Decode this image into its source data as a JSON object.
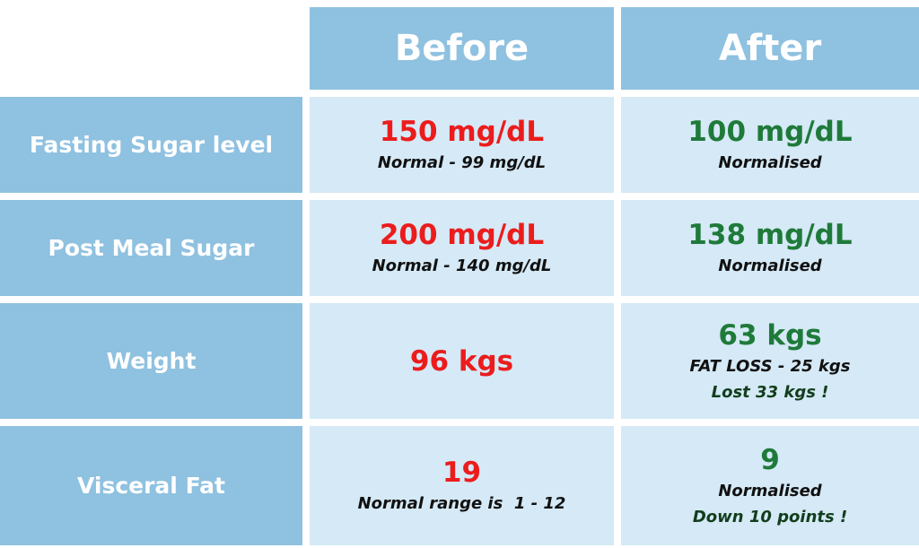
{
  "table": {
    "header": [
      "Before",
      "After"
    ],
    "rows": [
      {
        "label": "Fasting Sugar level",
        "before": {
          "main": "150 mg/dL",
          "notes": [
            "Normal - 99 mg/dL"
          ]
        },
        "after": {
          "main": "100 mg/dL",
          "notes": [
            "Normalised"
          ]
        }
      },
      {
        "label": "Post Meal Sugar",
        "before": {
          "main": "200 mg/dL",
          "notes": [
            "Normal - 140 mg/dL"
          ]
        },
        "after": {
          "main": "138 mg/dL",
          "notes": [
            "Normalised"
          ]
        }
      },
      {
        "label": "Weight",
        "before": {
          "main": "96 kgs",
          "notes": []
        },
        "after": {
          "main": "63 kgs",
          "notes": [
            "FAT LOSS - 25 kgs",
            "Lost 33 kgs !"
          ]
        }
      },
      {
        "label": "Visceral Fat",
        "before": {
          "main": "19",
          "notes": [
            "Normal range is  1 - 12"
          ]
        },
        "after": {
          "main": "9",
          "notes": [
            "Normalised",
            "Down 10 points !"
          ]
        }
      }
    ]
  }
}
